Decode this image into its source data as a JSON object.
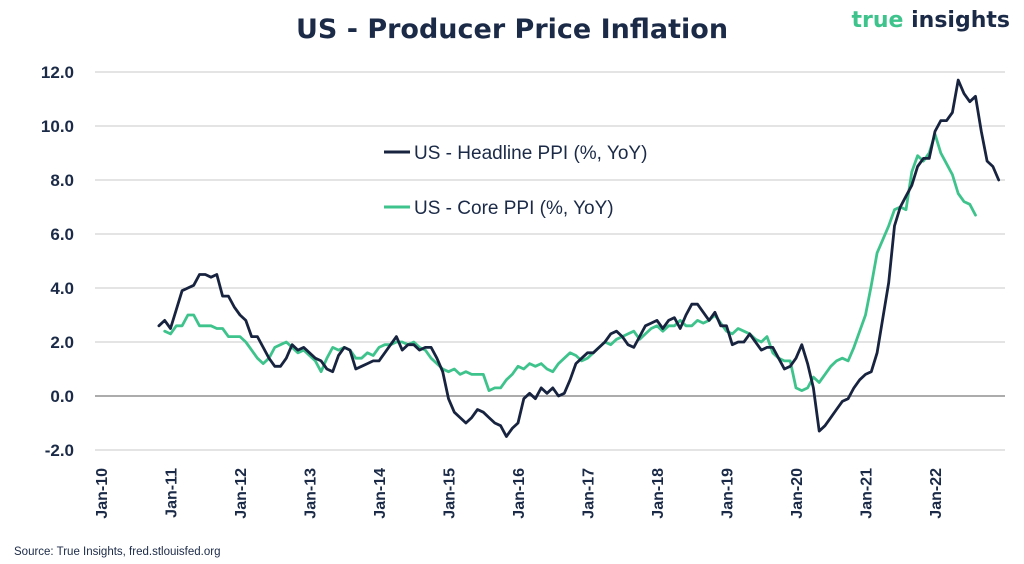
{
  "title": "US - Producer Price Inflation",
  "brand": {
    "part1": "true",
    "part2": "insights"
  },
  "source": "Source: True Insights, fred.stlouisfed.org",
  "colors": {
    "headline": "#17233f",
    "core": "#3fc38c",
    "text": "#1b2a47",
    "grid": "#c8c8c8"
  },
  "chart_data": {
    "type": "line",
    "title": "US - Producer Price Inflation",
    "ylim": [
      -2.0,
      12.0
    ],
    "yticks": [
      "-2.0",
      "0.0",
      "2.0",
      "4.0",
      "6.0",
      "8.0",
      "10.0",
      "12.0"
    ],
    "xticks": [
      "Jan-10",
      "Jan-11",
      "Jan-12",
      "Jan-13",
      "Jan-14",
      "Jan-15",
      "Jan-16",
      "Jan-17",
      "Jan-18",
      "Jan-19",
      "Jan-20",
      "Jan-21",
      "Jan-22"
    ],
    "grid": true,
    "legend_position": "center-right",
    "series": [
      {
        "name": "US - Headline PPI (%, YoY)",
        "start": "2010-11",
        "values": [
          2.6,
          2.8,
          2.5,
          3.2,
          3.9,
          4.0,
          4.1,
          4.5,
          4.5,
          4.4,
          4.5,
          3.7,
          3.7,
          3.3,
          3.0,
          2.8,
          2.2,
          2.2,
          1.8,
          1.4,
          1.1,
          1.1,
          1.4,
          1.9,
          1.7,
          1.8,
          1.6,
          1.4,
          1.3,
          1.0,
          0.9,
          1.5,
          1.8,
          1.7,
          1.0,
          1.1,
          1.2,
          1.3,
          1.3,
          1.6,
          1.9,
          2.2,
          1.7,
          1.9,
          1.9,
          1.7,
          1.8,
          1.8,
          1.4,
          0.9,
          -0.1,
          -0.6,
          -0.8,
          -1.0,
          -0.8,
          -0.5,
          -0.6,
          -0.8,
          -1.0,
          -1.1,
          -1.5,
          -1.2,
          -1.0,
          -0.1,
          0.1,
          -0.1,
          0.3,
          0.1,
          0.3,
          0.0,
          0.1,
          0.6,
          1.2,
          1.4,
          1.6,
          1.6,
          1.8,
          2.0,
          2.3,
          2.4,
          2.2,
          1.9,
          1.8,
          2.2,
          2.6,
          2.7,
          2.8,
          2.5,
          2.8,
          2.9,
          2.5,
          3.0,
          3.4,
          3.4,
          3.1,
          2.8,
          3.1,
          2.6,
          2.6,
          1.9,
          2.0,
          2.0,
          2.3,
          2.0,
          1.7,
          1.8,
          1.8,
          1.4,
          1.0,
          1.1,
          1.4,
          1.9,
          1.2,
          0.3,
          -1.3,
          -1.1,
          -0.8,
          -0.5,
          -0.2,
          -0.1,
          0.3,
          0.6,
          0.8,
          0.9,
          1.6,
          2.9,
          4.2,
          6.3,
          7.0,
          7.4,
          7.8,
          8.5,
          8.8,
          8.8,
          9.8,
          10.2,
          10.2,
          10.5,
          11.7,
          11.2,
          10.9,
          11.1,
          9.8,
          8.7,
          8.5,
          8.0
        ]
      },
      {
        "name": "US - Core PPI (%, YoY)",
        "start": "2010-12",
        "values": [
          2.4,
          2.3,
          2.6,
          2.6,
          3.0,
          3.0,
          2.6,
          2.6,
          2.6,
          2.5,
          2.5,
          2.2,
          2.2,
          2.2,
          2.0,
          1.7,
          1.4,
          1.2,
          1.4,
          1.8,
          1.9,
          2.0,
          1.8,
          1.6,
          1.7,
          1.5,
          1.3,
          0.9,
          1.4,
          1.8,
          1.7,
          1.8,
          1.7,
          1.4,
          1.4,
          1.6,
          1.5,
          1.8,
          1.9,
          1.9,
          2.0,
          2.0,
          1.9,
          2.0,
          1.8,
          1.7,
          1.4,
          1.2,
          1.0,
          0.9,
          1.0,
          0.8,
          0.9,
          0.8,
          0.8,
          0.8,
          0.2,
          0.3,
          0.3,
          0.6,
          0.8,
          1.1,
          1.0,
          1.2,
          1.1,
          1.2,
          1.0,
          0.9,
          1.2,
          1.4,
          1.6,
          1.5,
          1.3,
          1.4,
          1.6,
          1.8,
          2.0,
          1.9,
          2.1,
          2.2,
          2.3,
          2.4,
          2.1,
          2.3,
          2.5,
          2.6,
          2.4,
          2.6,
          2.6,
          2.8,
          2.6,
          2.6,
          2.8,
          2.7,
          2.8,
          3.0,
          2.7,
          2.4,
          2.3,
          2.5,
          2.4,
          2.3,
          2.1,
          2.0,
          2.2,
          1.6,
          1.4,
          1.3,
          1.3,
          0.3,
          0.2,
          0.3,
          0.7,
          0.5,
          0.8,
          1.1,
          1.3,
          1.4,
          1.3,
          1.8,
          2.4,
          3.0,
          4.1,
          5.3,
          5.8,
          6.3,
          6.9,
          7.0,
          6.9,
          8.3,
          8.9,
          8.7,
          9.0,
          9.7,
          9.0,
          8.6,
          8.2,
          7.5,
          7.2,
          7.1,
          6.7
        ]
      }
    ]
  }
}
